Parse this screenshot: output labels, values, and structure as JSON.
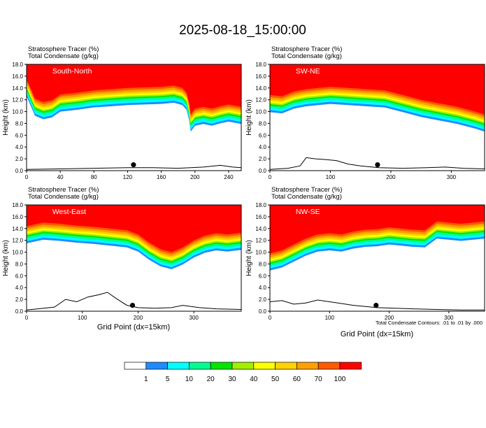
{
  "title": "2025-08-18_15:00:00",
  "panel_header": {
    "line1": "Stratosphere Tracer   (%)",
    "line2": "Total Condensate   (g/kg)"
  },
  "ylabel": "Height (km)",
  "xlabel": "Grid Point (dx=15km)",
  "contour_note": "Total Condensate Contours: .01 to .01 by .000",
  "colorbar": {
    "labels": [
      "1",
      "5",
      "10",
      "20",
      "30",
      "40",
      "50",
      "60",
      "70",
      "100"
    ],
    "colors": [
      "#ffffff",
      "#1e8cff",
      "#00ffff",
      "#00ff90",
      "#00e600",
      "#a0f000",
      "#ffff00",
      "#ffd200",
      "#ffa000",
      "#ff5a00",
      "#ff0000"
    ]
  },
  "chart_data": [
    {
      "type": "heatmap",
      "panel_label": "South-North",
      "xlim": [
        0,
        255
      ],
      "ylim": [
        0,
        18
      ],
      "xticks": [
        0,
        40,
        80,
        120,
        160,
        200,
        240
      ],
      "yticks": [
        0.0,
        2.0,
        4.0,
        6.0,
        8.0,
        10.0,
        12.0,
        14.0,
        16.0,
        18.0
      ],
      "marker_x": 127,
      "tracer_boundary": [
        [
          0,
          15.5
        ],
        [
          10,
          12.2
        ],
        [
          20,
          11.6
        ],
        [
          30,
          11.9
        ],
        [
          40,
          12.9
        ],
        [
          60,
          13.2
        ],
        [
          80,
          13.6
        ],
        [
          100,
          13.8
        ],
        [
          120,
          14.0
        ],
        [
          140,
          14.1
        ],
        [
          160,
          14.2
        ],
        [
          175,
          14.4
        ],
        [
          185,
          14.0
        ],
        [
          190,
          13.2
        ],
        [
          193,
          11.5
        ],
        [
          195,
          9.5
        ],
        [
          200,
          10.5
        ],
        [
          210,
          10.8
        ],
        [
          220,
          10.5
        ],
        [
          230,
          10.9
        ],
        [
          240,
          11.2
        ],
        [
          255,
          10.8
        ]
      ],
      "terrain": [
        [
          0,
          0.2
        ],
        [
          40,
          0.3
        ],
        [
          80,
          0.4
        ],
        [
          120,
          0.5
        ],
        [
          150,
          0.5
        ],
        [
          180,
          0.4
        ],
        [
          210,
          0.6
        ],
        [
          230,
          0.9
        ],
        [
          245,
          0.6
        ],
        [
          255,
          0.5
        ]
      ]
    },
    {
      "type": "heatmap",
      "panel_label": "SW-NE",
      "xlim": [
        0,
        355
      ],
      "ylim": [
        0,
        18
      ],
      "xticks": [
        0,
        100,
        200,
        300
      ],
      "yticks": [
        0.0,
        2.0,
        4.0,
        6.0,
        8.0,
        10.0,
        12.0,
        14.0,
        16.0,
        18.0
      ],
      "marker_x": 178,
      "tracer_boundary": [
        [
          0,
          12.8
        ],
        [
          20,
          12.6
        ],
        [
          40,
          13.4
        ],
        [
          60,
          13.8
        ],
        [
          80,
          14.0
        ],
        [
          100,
          14.2
        ],
        [
          130,
          14.0
        ],
        [
          160,
          13.8
        ],
        [
          190,
          13.6
        ],
        [
          220,
          12.8
        ],
        [
          250,
          12.0
        ],
        [
          280,
          11.4
        ],
        [
          310,
          10.8
        ],
        [
          340,
          10.0
        ],
        [
          355,
          9.5
        ]
      ],
      "terrain": [
        [
          0,
          0.2
        ],
        [
          30,
          0.4
        ],
        [
          50,
          0.8
        ],
        [
          60,
          2.2
        ],
        [
          75,
          2.0
        ],
        [
          90,
          1.9
        ],
        [
          110,
          1.7
        ],
        [
          130,
          1.1
        ],
        [
          150,
          0.8
        ],
        [
          180,
          0.5
        ],
        [
          220,
          0.4
        ],
        [
          260,
          0.5
        ],
        [
          290,
          0.6
        ],
        [
          320,
          0.4
        ],
        [
          355,
          0.3
        ]
      ]
    },
    {
      "type": "heatmap",
      "panel_label": "West-East",
      "xlim": [
        0,
        385
      ],
      "ylim": [
        0,
        18
      ],
      "xticks": [
        0,
        100,
        200,
        300
      ],
      "yticks": [
        0.0,
        2.0,
        4.0,
        6.0,
        8.0,
        10.0,
        12.0,
        14.0,
        16.0,
        18.0
      ],
      "marker_x": 190,
      "tracer_boundary": [
        [
          0,
          14.4
        ],
        [
          30,
          15.0
        ],
        [
          60,
          14.8
        ],
        [
          90,
          14.5
        ],
        [
          120,
          14.3
        ],
        [
          150,
          14.0
        ],
        [
          180,
          13.7
        ],
        [
          200,
          13.0
        ],
        [
          220,
          11.6
        ],
        [
          240,
          10.5
        ],
        [
          260,
          10.0
        ],
        [
          280,
          10.8
        ],
        [
          300,
          12.0
        ],
        [
          320,
          12.8
        ],
        [
          340,
          13.2
        ],
        [
          360,
          13.0
        ],
        [
          385,
          13.3
        ]
      ],
      "terrain": [
        [
          0,
          0.2
        ],
        [
          20,
          0.4
        ],
        [
          50,
          0.7
        ],
        [
          70,
          2.0
        ],
        [
          90,
          1.6
        ],
        [
          110,
          2.4
        ],
        [
          130,
          2.8
        ],
        [
          145,
          3.2
        ],
        [
          160,
          2.2
        ],
        [
          180,
          1.0
        ],
        [
          200,
          0.6
        ],
        [
          230,
          0.5
        ],
        [
          260,
          0.6
        ],
        [
          280,
          1.0
        ],
        [
          310,
          0.6
        ],
        [
          340,
          0.4
        ],
        [
          385,
          0.3
        ]
      ]
    },
    {
      "type": "heatmap",
      "panel_label": "NW-SE",
      "xlim": [
        0,
        360
      ],
      "ylim": [
        0,
        18
      ],
      "xticks": [
        0,
        100,
        200,
        300
      ],
      "yticks": [
        0.0,
        2.0,
        4.0,
        6.0,
        8.0,
        10.0,
        12.0,
        14.0,
        16.0,
        18.0
      ],
      "marker_x": 178,
      "tracer_boundary": [
        [
          0,
          9.8
        ],
        [
          20,
          10.3
        ],
        [
          40,
          11.3
        ],
        [
          60,
          12.3
        ],
        [
          80,
          13.0
        ],
        [
          100,
          13.2
        ],
        [
          120,
          13.0
        ],
        [
          140,
          13.5
        ],
        [
          160,
          13.8
        ],
        [
          180,
          13.9
        ],
        [
          200,
          14.2
        ],
        [
          220,
          14.0
        ],
        [
          240,
          13.8
        ],
        [
          260,
          13.7
        ],
        [
          280,
          15.2
        ],
        [
          300,
          15.0
        ],
        [
          320,
          14.8
        ],
        [
          360,
          15.2
        ]
      ],
      "terrain": [
        [
          0,
          1.6
        ],
        [
          20,
          1.8
        ],
        [
          40,
          1.2
        ],
        [
          60,
          1.4
        ],
        [
          80,
          1.9
        ],
        [
          100,
          1.6
        ],
        [
          120,
          1.3
        ],
        [
          140,
          1.0
        ],
        [
          160,
          0.8
        ],
        [
          180,
          0.6
        ],
        [
          210,
          0.5
        ],
        [
          240,
          0.4
        ],
        [
          280,
          0.3
        ],
        [
          320,
          0.2
        ],
        [
          360,
          0.2
        ]
      ]
    }
  ]
}
